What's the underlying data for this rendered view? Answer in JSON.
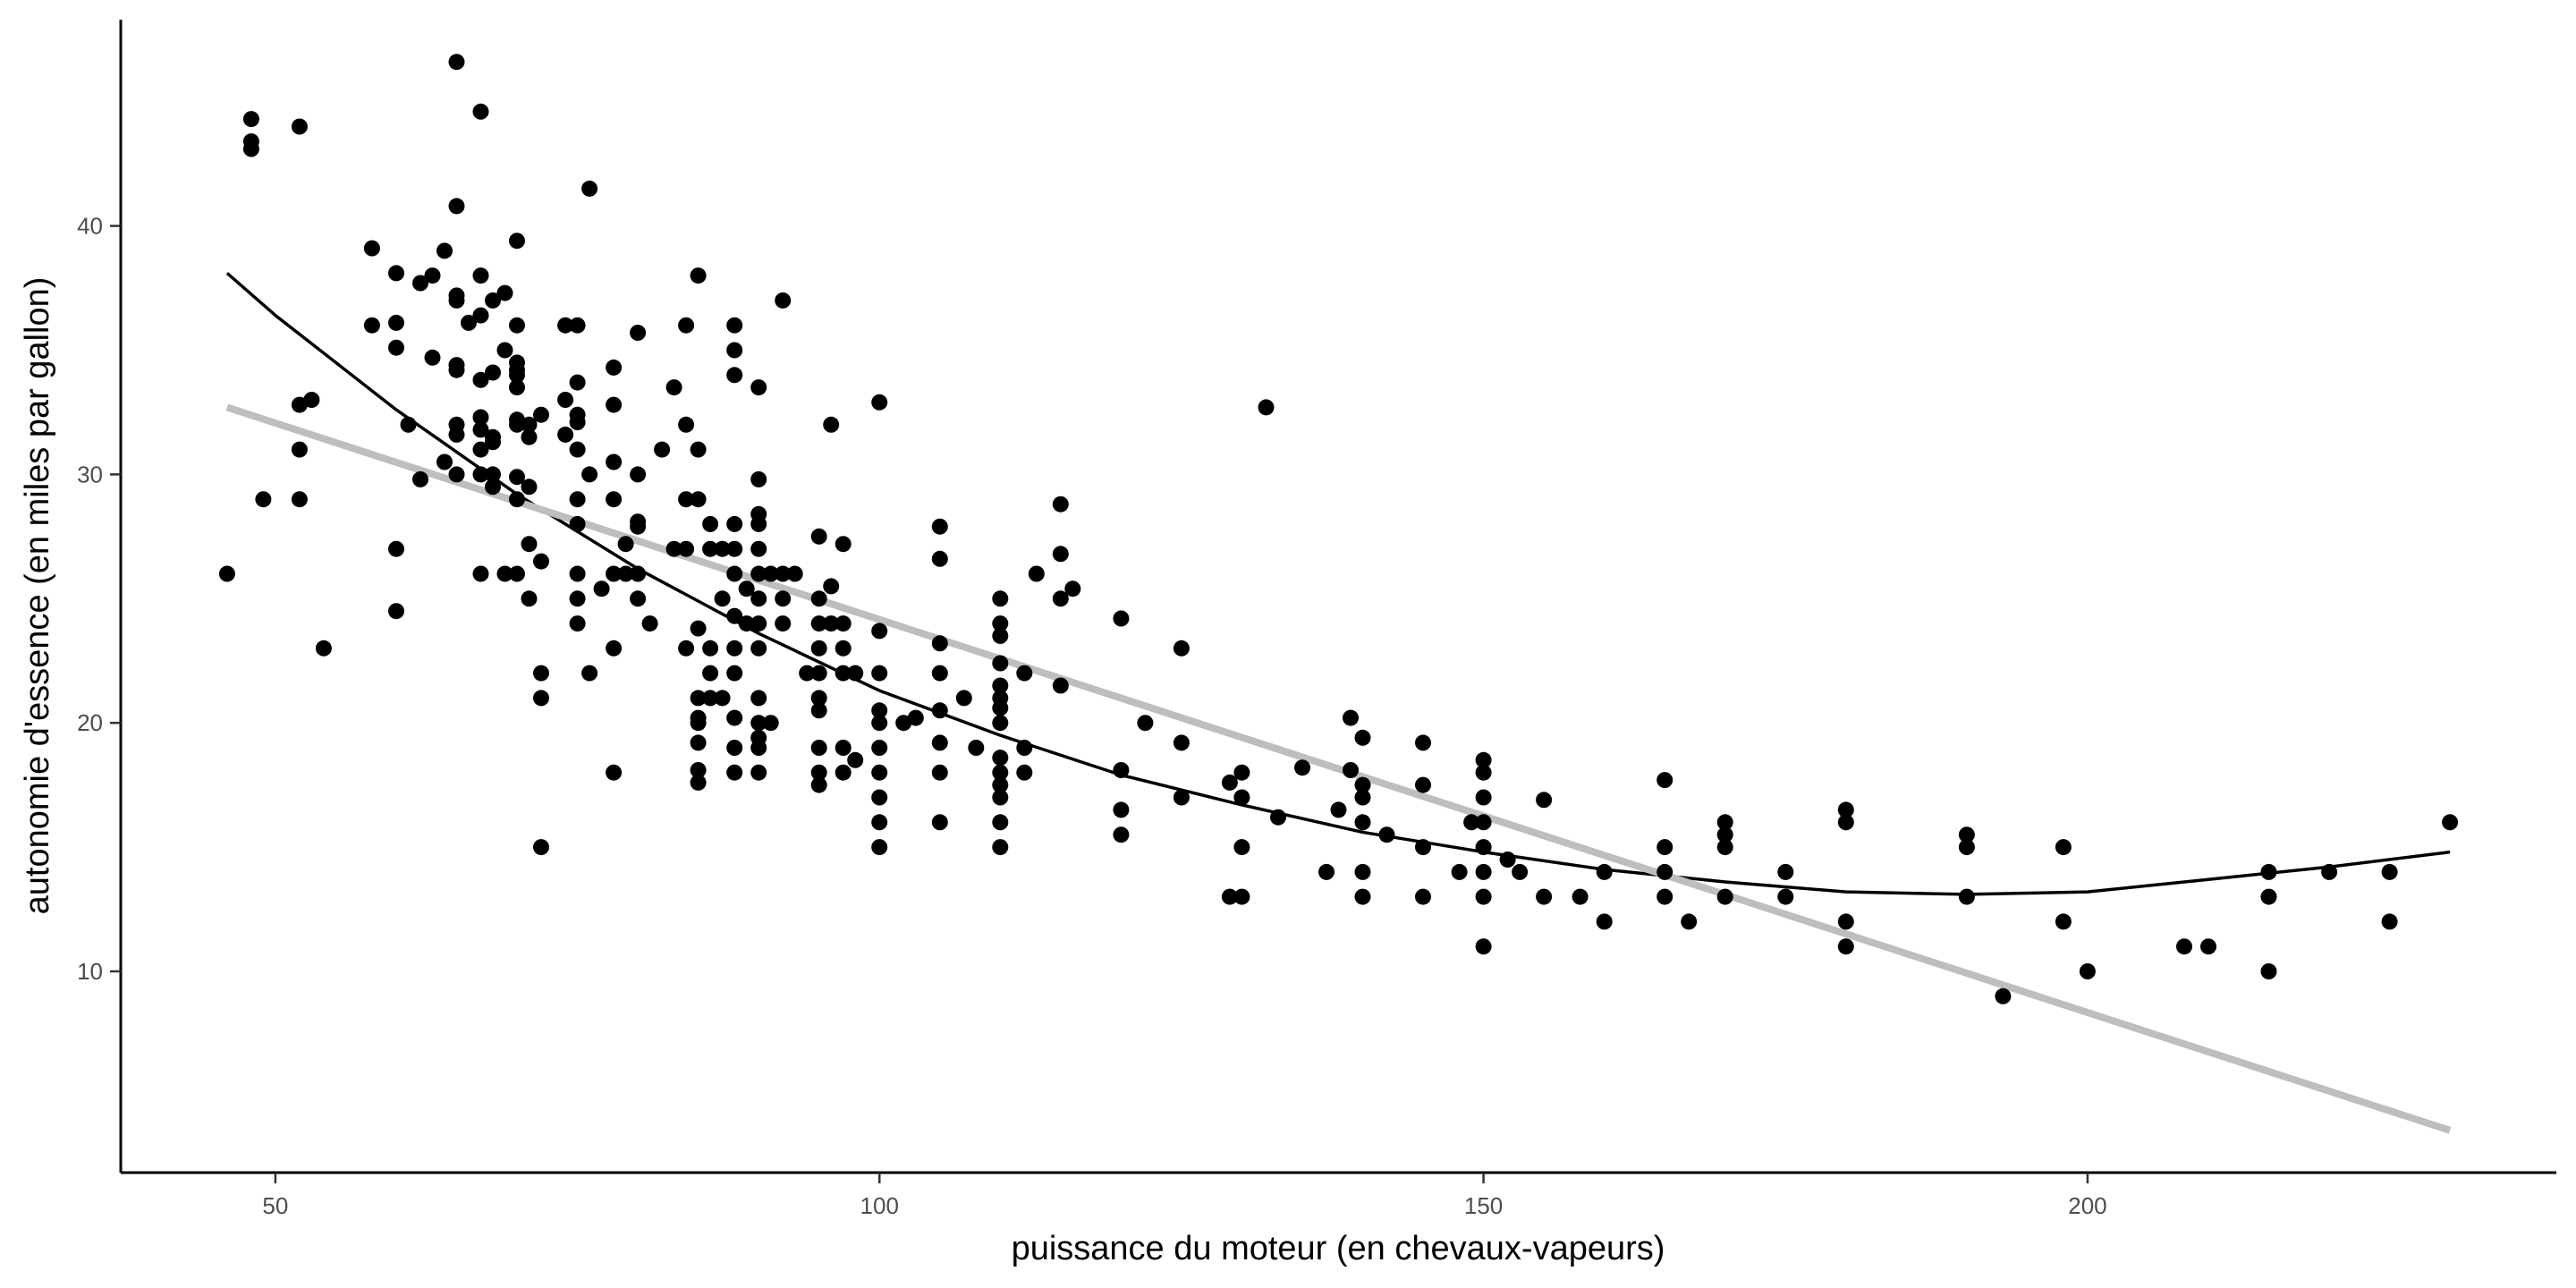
{
  "chart_data": {
    "type": "scatter",
    "title": "",
    "xlabel": "puissance du moteur (en chevaux-vapeurs)",
    "ylabel": "autonomie d'essence (en miles par gallon)",
    "xlim": [
      37.2,
      238.8
    ],
    "ylim": [
      1.9,
      48.3
    ],
    "x_ticks": [
      50,
      100,
      150,
      200
    ],
    "y_ticks": [
      10,
      20,
      30,
      40
    ],
    "grid": false,
    "legend": "none",
    "point_color": "#000000",
    "points": [
      [
        46,
        26
      ],
      [
        48,
        44.3
      ],
      [
        48,
        43.4
      ],
      [
        48,
        43.1
      ],
      [
        49,
        29
      ],
      [
        52,
        44
      ],
      [
        52,
        32.8
      ],
      [
        52,
        31
      ],
      [
        52,
        29
      ],
      [
        53,
        33
      ],
      [
        54,
        23
      ],
      [
        58,
        39.1
      ],
      [
        58,
        36
      ],
      [
        60,
        38.1
      ],
      [
        60,
        36.1
      ],
      [
        60,
        35.1
      ],
      [
        60,
        27
      ],
      [
        60,
        24.5
      ],
      [
        61,
        32
      ],
      [
        62,
        29.8
      ],
      [
        62,
        37.7
      ],
      [
        63,
        38
      ],
      [
        63,
        34.7
      ],
      [
        64,
        39
      ],
      [
        64,
        30.5
      ],
      [
        65,
        46.6
      ],
      [
        65,
        40.8
      ],
      [
        65,
        37.2
      ],
      [
        65,
        37
      ],
      [
        65,
        34.4
      ],
      [
        65,
        34.2
      ],
      [
        65,
        32
      ],
      [
        65,
        31.6
      ],
      [
        65,
        30
      ],
      [
        66,
        36.1
      ],
      [
        67,
        44.6
      ],
      [
        67,
        38
      ],
      [
        67,
        36.4
      ],
      [
        67,
        33.8
      ],
      [
        67,
        32.3
      ],
      [
        67,
        31.8
      ],
      [
        67,
        31
      ],
      [
        67,
        30
      ],
      [
        67,
        26
      ],
      [
        68,
        37
      ],
      [
        68,
        34.1
      ],
      [
        68,
        31.5
      ],
      [
        68,
        31.3
      ],
      [
        68,
        30
      ],
      [
        68,
        29.5
      ],
      [
        69,
        37.3
      ],
      [
        69,
        35
      ],
      [
        69,
        26
      ],
      [
        70,
        39.4
      ],
      [
        70,
        36
      ],
      [
        70,
        34.5
      ],
      [
        70,
        34.2
      ],
      [
        70,
        34
      ],
      [
        70,
        33.5
      ],
      [
        70,
        32.2
      ],
      [
        70,
        32
      ],
      [
        70,
        29.9
      ],
      [
        70,
        29
      ],
      [
        70,
        26
      ],
      [
        71,
        32
      ],
      [
        71,
        31.5
      ],
      [
        71,
        29.5
      ],
      [
        71,
        27.2
      ],
      [
        71,
        25
      ],
      [
        72,
        32.4
      ],
      [
        72,
        26.5
      ],
      [
        72,
        22
      ],
      [
        72,
        21
      ],
      [
        72,
        15
      ],
      [
        74,
        36
      ],
      [
        74,
        33
      ],
      [
        74,
        31.6
      ],
      [
        75,
        36
      ],
      [
        75,
        33.7
      ],
      [
        75,
        32.4
      ],
      [
        75,
        32.1
      ],
      [
        75,
        31
      ],
      [
        75,
        29
      ],
      [
        75,
        28
      ],
      [
        75,
        26
      ],
      [
        75,
        25
      ],
      [
        75,
        24
      ],
      [
        76,
        41.5
      ],
      [
        76,
        30
      ],
      [
        76,
        22
      ],
      [
        77,
        25.4
      ],
      [
        78,
        34.3
      ],
      [
        78,
        32.8
      ],
      [
        78,
        30.5
      ],
      [
        78,
        29
      ],
      [
        78,
        26
      ],
      [
        78,
        23
      ],
      [
        78,
        18
      ],
      [
        79,
        27.2
      ],
      [
        79,
        26
      ],
      [
        80,
        35.7
      ],
      [
        80,
        30
      ],
      [
        80,
        28.1
      ],
      [
        80,
        27.9
      ],
      [
        80,
        25
      ],
      [
        80,
        26
      ],
      [
        81,
        24
      ],
      [
        82,
        31
      ],
      [
        83,
        33.5
      ],
      [
        83,
        27
      ],
      [
        84,
        36
      ],
      [
        84,
        32
      ],
      [
        84,
        29
      ],
      [
        84,
        27
      ],
      [
        84,
        23
      ],
      [
        85,
        38
      ],
      [
        85,
        31
      ],
      [
        85,
        29
      ],
      [
        85,
        23.8
      ],
      [
        85,
        21
      ],
      [
        85,
        20.2
      ],
      [
        85,
        20
      ],
      [
        85,
        19.2
      ],
      [
        85,
        18.1
      ],
      [
        85,
        17.6
      ],
      [
        86,
        28
      ],
      [
        86,
        27
      ],
      [
        86,
        23
      ],
      [
        86,
        22
      ],
      [
        86,
        21
      ],
      [
        87,
        27
      ],
      [
        87,
        25
      ],
      [
        87,
        21
      ],
      [
        88,
        36
      ],
      [
        88,
        35
      ],
      [
        88,
        34
      ],
      [
        88,
        28
      ],
      [
        88,
        27
      ],
      [
        88,
        26
      ],
      [
        88,
        24.3
      ],
      [
        88,
        23
      ],
      [
        88,
        22
      ],
      [
        88,
        20.2
      ],
      [
        88,
        19
      ],
      [
        88,
        18
      ],
      [
        89,
        25.4
      ],
      [
        89,
        24
      ],
      [
        90,
        33.5
      ],
      [
        90,
        29.8
      ],
      [
        90,
        28.4
      ],
      [
        90,
        28
      ],
      [
        90,
        27
      ],
      [
        90,
        26
      ],
      [
        90,
        25
      ],
      [
        90,
        24
      ],
      [
        90,
        23
      ],
      [
        90,
        21
      ],
      [
        90,
        20
      ],
      [
        90,
        19.4
      ],
      [
        90,
        19
      ],
      [
        90,
        18
      ],
      [
        91,
        26
      ],
      [
        91,
        20
      ],
      [
        92,
        37
      ],
      [
        92,
        26
      ],
      [
        92,
        25
      ],
      [
        92,
        24
      ],
      [
        93,
        26
      ],
      [
        94,
        22
      ],
      [
        95,
        27.5
      ],
      [
        95,
        25
      ],
      [
        95,
        24
      ],
      [
        95,
        23
      ],
      [
        95,
        22
      ],
      [
        95,
        21
      ],
      [
        95,
        20.5
      ],
      [
        95,
        19
      ],
      [
        95,
        18
      ],
      [
        95,
        17.5
      ],
      [
        96,
        32
      ],
      [
        96,
        25.5
      ],
      [
        96,
        24
      ],
      [
        97,
        27.2
      ],
      [
        97,
        24
      ],
      [
        97,
        23
      ],
      [
        97,
        22
      ],
      [
        97,
        18
      ],
      [
        97,
        19
      ],
      [
        98,
        22
      ],
      [
        98,
        18.5
      ],
      [
        100,
        32.9
      ],
      [
        100,
        23.7
      ],
      [
        100,
        22
      ],
      [
        100,
        20.5
      ],
      [
        100,
        20
      ],
      [
        100,
        19
      ],
      [
        100,
        18
      ],
      [
        100,
        17
      ],
      [
        100,
        16
      ],
      [
        100,
        15
      ],
      [
        102,
        20
      ],
      [
        103,
        20.2
      ],
      [
        105,
        27.9
      ],
      [
        105,
        26.6
      ],
      [
        105,
        23.2
      ],
      [
        105,
        22
      ],
      [
        105,
        20.5
      ],
      [
        105,
        19.2
      ],
      [
        105,
        18
      ],
      [
        105,
        16
      ],
      [
        107,
        21
      ],
      [
        108,
        19
      ],
      [
        110,
        25
      ],
      [
        110,
        24
      ],
      [
        110,
        23.5
      ],
      [
        110,
        22.4
      ],
      [
        110,
        21.5
      ],
      [
        110,
        21
      ],
      [
        110,
        20.6
      ],
      [
        110,
        20
      ],
      [
        110,
        18.6
      ],
      [
        110,
        18
      ],
      [
        110,
        17.5
      ],
      [
        110,
        17
      ],
      [
        110,
        16
      ],
      [
        110,
        15
      ],
      [
        112,
        22
      ],
      [
        112,
        19
      ],
      [
        112,
        18
      ],
      [
        113,
        26
      ],
      [
        115,
        28.8
      ],
      [
        115,
        26.8
      ],
      [
        115,
        25
      ],
      [
        115,
        21.5
      ],
      [
        116,
        25.4
      ],
      [
        120,
        24.2
      ],
      [
        120,
        18.1
      ],
      [
        120,
        16.5
      ],
      [
        120,
        15.5
      ],
      [
        122,
        20
      ],
      [
        125,
        23
      ],
      [
        125,
        19.2
      ],
      [
        125,
        17
      ],
      [
        129,
        13
      ],
      [
        129,
        17.6
      ],
      [
        130,
        18
      ],
      [
        130,
        17
      ],
      [
        130,
        15
      ],
      [
        130,
        13
      ],
      [
        132,
        32.7
      ],
      [
        133,
        16.2
      ],
      [
        135,
        18.2
      ],
      [
        137,
        14
      ],
      [
        138,
        16.5
      ],
      [
        139,
        20.2
      ],
      [
        139,
        18.1
      ],
      [
        140,
        19.4
      ],
      [
        140,
        17
      ],
      [
        140,
        17.5
      ],
      [
        140,
        16
      ],
      [
        140,
        14
      ],
      [
        140,
        13
      ],
      [
        142,
        15.5
      ],
      [
        145,
        19.2
      ],
      [
        145,
        17.5
      ],
      [
        145,
        15
      ],
      [
        145,
        13
      ],
      [
        148,
        14
      ],
      [
        149,
        16
      ],
      [
        150,
        18.5
      ],
      [
        150,
        18
      ],
      [
        150,
        17
      ],
      [
        150,
        16
      ],
      [
        150,
        15
      ],
      [
        150,
        14
      ],
      [
        150,
        13
      ],
      [
        150,
        11
      ],
      [
        152,
        14.5
      ],
      [
        153,
        14
      ],
      [
        155,
        16.9
      ],
      [
        155,
        13
      ],
      [
        158,
        13
      ],
      [
        160,
        14
      ],
      [
        160,
        12
      ],
      [
        165,
        17.7
      ],
      [
        165,
        15
      ],
      [
        165,
        14
      ],
      [
        165,
        13
      ],
      [
        167,
        12
      ],
      [
        170,
        16
      ],
      [
        170,
        15.5
      ],
      [
        170,
        15
      ],
      [
        170,
        13
      ],
      [
        175,
        14
      ],
      [
        175,
        13
      ],
      [
        180,
        16.5
      ],
      [
        180,
        16
      ],
      [
        180,
        12
      ],
      [
        180,
        11
      ],
      [
        190,
        15.5
      ],
      [
        190,
        15
      ],
      [
        190,
        13
      ],
      [
        193,
        9
      ],
      [
        198,
        15
      ],
      [
        198,
        12
      ],
      [
        200,
        10
      ],
      [
        208,
        11
      ],
      [
        210,
        11
      ],
      [
        215,
        14
      ],
      [
        215,
        13
      ],
      [
        215,
        10
      ],
      [
        220,
        14
      ],
      [
        225,
        14
      ],
      [
        225,
        12
      ],
      [
        230,
        16
      ]
    ],
    "series": [
      {
        "type": "quadratic-fit",
        "color": "#000000",
        "x": [
          46,
          50,
          60,
          70,
          80,
          90,
          100,
          110,
          120,
          130,
          140,
          150,
          160,
          170,
          180,
          190,
          200,
          210,
          220,
          230
        ],
        "values": [
          38.1,
          36.4,
          32.6,
          29.2,
          26.2,
          23.6,
          21.3,
          19.5,
          17.9,
          16.7,
          15.6,
          14.8,
          14.1,
          13.6,
          13.2,
          13.1,
          13.2,
          13.7,
          14.2,
          14.8
        ]
      },
      {
        "type": "linear-fit",
        "color": "#bebebe",
        "x": [
          46,
          230
        ],
        "values": [
          32.7,
          3.6
        ]
      }
    ]
  }
}
